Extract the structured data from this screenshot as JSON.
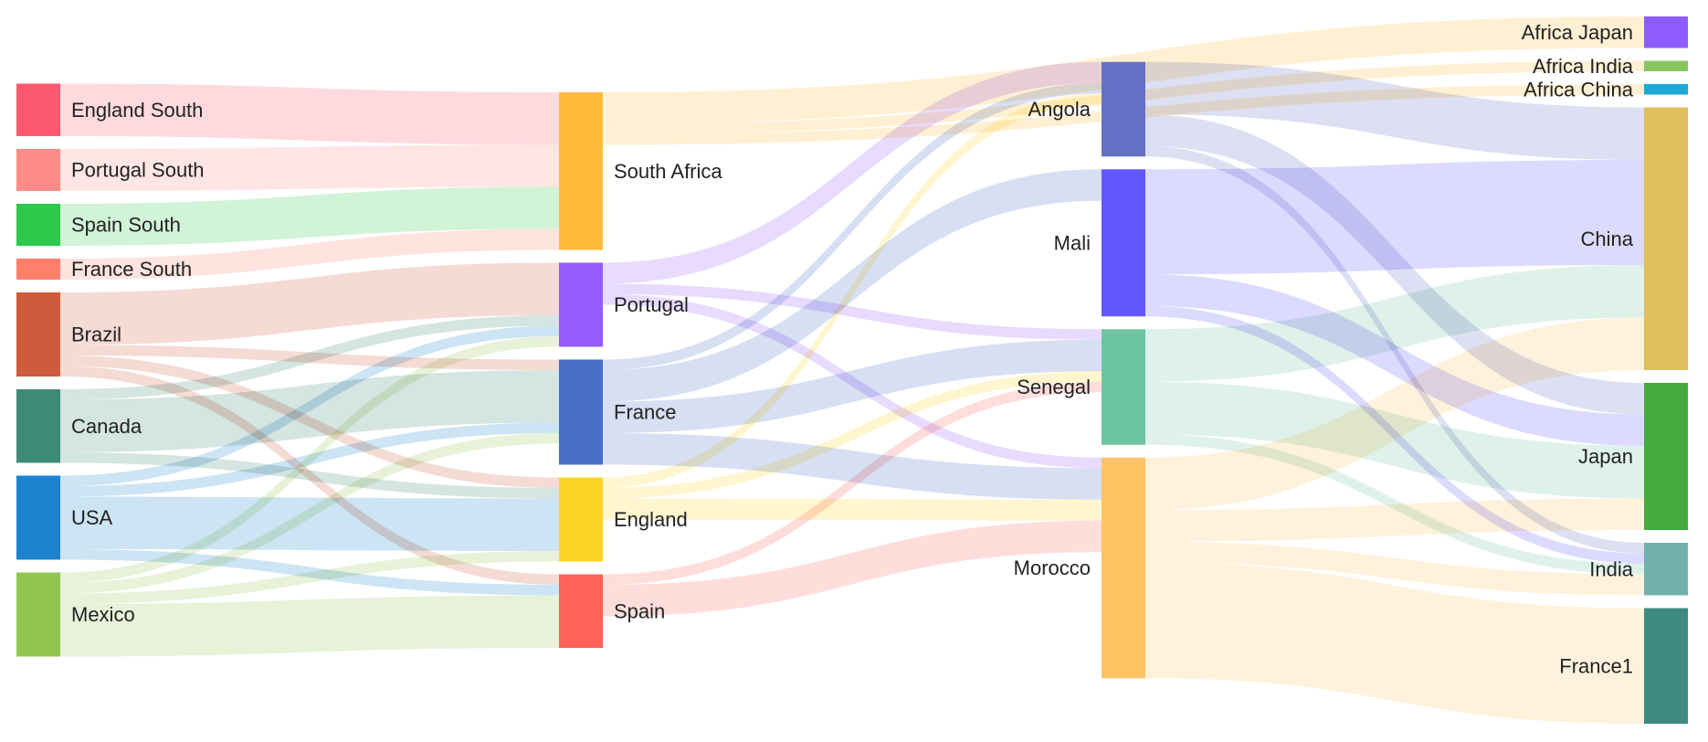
{
  "sankey": {
    "nodes": [
      {
        "id": "england-south",
        "label": "England South",
        "color": "#fc586e",
        "column": 0
      },
      {
        "id": "portugal-south",
        "label": "Portugal South",
        "color": "#fd8c88",
        "column": 0
      },
      {
        "id": "spain-south",
        "label": "Spain South",
        "color": "#2ec94a",
        "column": 0
      },
      {
        "id": "france-south",
        "label": "France South",
        "color": "#fe7f6a",
        "column": 0
      },
      {
        "id": "brazil",
        "label": "Brazil",
        "color": "#cf5a3c",
        "column": 0
      },
      {
        "id": "canada",
        "label": "Canada",
        "color": "#3e8a76",
        "column": 0
      },
      {
        "id": "usa",
        "label": "USA",
        "color": "#1c84cf",
        "column": 0
      },
      {
        "id": "mexico",
        "label": "Mexico",
        "color": "#92c651",
        "column": 0
      },
      {
        "id": "south-africa",
        "label": "South Africa",
        "color": "#ffbc3c",
        "column": 1
      },
      {
        "id": "portugal",
        "label": "Portugal",
        "color": "#955cfe",
        "column": 1
      },
      {
        "id": "france",
        "label": "France",
        "color": "#4a6ec7",
        "column": 1
      },
      {
        "id": "england",
        "label": "England",
        "color": "#fed425",
        "column": 1
      },
      {
        "id": "spain",
        "label": "Spain",
        "color": "#fe6259",
        "column": 1
      },
      {
        "id": "angola",
        "label": "Angola",
        "color": "#6670c5",
        "column": 2
      },
      {
        "id": "mali",
        "label": "Mali",
        "color": "#6258fe",
        "column": 2
      },
      {
        "id": "senegal",
        "label": "Senegal",
        "color": "#6cc4a1",
        "column": 2
      },
      {
        "id": "morocco",
        "label": "Morocco",
        "color": "#ffc365",
        "column": 2
      },
      {
        "id": "africa-japan",
        "label": "Africa Japan",
        "color": "#8e5cfe",
        "column": 3
      },
      {
        "id": "africa-india",
        "label": "Africa India",
        "color": "#88c662",
        "column": 3
      },
      {
        "id": "africa-china",
        "label": "Africa China",
        "color": "#1ba9d6",
        "column": 3
      },
      {
        "id": "china",
        "label": "China",
        "color": "#dfbf5e",
        "column": 3
      },
      {
        "id": "japan",
        "label": "Japan",
        "color": "#45aa3f",
        "column": 3
      },
      {
        "id": "india",
        "label": "India",
        "color": "#72b1ab",
        "column": 3
      },
      {
        "id": "france1",
        "label": "France1",
        "color": "#3c8a82",
        "column": 3
      }
    ],
    "links": [
      {
        "source": "england-south",
        "target": "south-africa",
        "value": 5
      },
      {
        "source": "portugal-south",
        "target": "south-africa",
        "value": 4
      },
      {
        "source": "spain-south",
        "target": "south-africa",
        "value": 4
      },
      {
        "source": "france-south",
        "target": "south-africa",
        "value": 2
      },
      {
        "source": "brazil",
        "target": "portugal",
        "value": 5
      },
      {
        "source": "brazil",
        "target": "france",
        "value": 1
      },
      {
        "source": "brazil",
        "target": "england",
        "value": 1
      },
      {
        "source": "brazil",
        "target": "spain",
        "value": 1
      },
      {
        "source": "canada",
        "target": "portugal",
        "value": 1
      },
      {
        "source": "canada",
        "target": "france",
        "value": 5
      },
      {
        "source": "canada",
        "target": "england",
        "value": 1
      },
      {
        "source": "usa",
        "target": "portugal",
        "value": 1
      },
      {
        "source": "usa",
        "target": "france",
        "value": 1
      },
      {
        "source": "usa",
        "target": "england",
        "value": 5
      },
      {
        "source": "usa",
        "target": "spain",
        "value": 1
      },
      {
        "source": "mexico",
        "target": "portugal",
        "value": 1
      },
      {
        "source": "mexico",
        "target": "france",
        "value": 1
      },
      {
        "source": "mexico",
        "target": "england",
        "value": 1
      },
      {
        "source": "mexico",
        "target": "spain",
        "value": 5
      },
      {
        "source": "portugal",
        "target": "angola",
        "value": 2
      },
      {
        "source": "portugal",
        "target": "senegal",
        "value": 1
      },
      {
        "source": "portugal",
        "target": "morocco",
        "value": 1
      },
      {
        "source": "france",
        "target": "angola",
        "value": 1
      },
      {
        "source": "france",
        "target": "mali",
        "value": 3
      },
      {
        "source": "france",
        "target": "senegal",
        "value": 3
      },
      {
        "source": "france",
        "target": "morocco",
        "value": 3
      },
      {
        "source": "england",
        "target": "angola",
        "value": 1
      },
      {
        "source": "england",
        "target": "senegal",
        "value": 1
      },
      {
        "source": "england",
        "target": "morocco",
        "value": 2
      },
      {
        "source": "spain",
        "target": "senegal",
        "value": 1
      },
      {
        "source": "spain",
        "target": "morocco",
        "value": 3
      },
      {
        "source": "south-africa",
        "target": "africa-japan",
        "value": 3
      },
      {
        "source": "south-africa",
        "target": "africa-india",
        "value": 1
      },
      {
        "source": "south-africa",
        "target": "africa-china",
        "value": 1
      },
      {
        "source": "angola",
        "target": "china",
        "value": 5
      },
      {
        "source": "angola",
        "target": "japan",
        "value": 3
      },
      {
        "source": "angola",
        "target": "india",
        "value": 1
      },
      {
        "source": "mali",
        "target": "china",
        "value": 10
      },
      {
        "source": "mali",
        "target": "japan",
        "value": 3
      },
      {
        "source": "mali",
        "target": "india",
        "value": 1
      },
      {
        "source": "senegal",
        "target": "china",
        "value": 5
      },
      {
        "source": "senegal",
        "target": "japan",
        "value": 5
      },
      {
        "source": "senegal",
        "target": "india",
        "value": 1
      },
      {
        "source": "morocco",
        "target": "china",
        "value": 5
      },
      {
        "source": "morocco",
        "target": "japan",
        "value": 3
      },
      {
        "source": "morocco",
        "target": "india",
        "value": 2
      },
      {
        "source": "morocco",
        "target": "france1",
        "value": 11
      }
    ]
  }
}
